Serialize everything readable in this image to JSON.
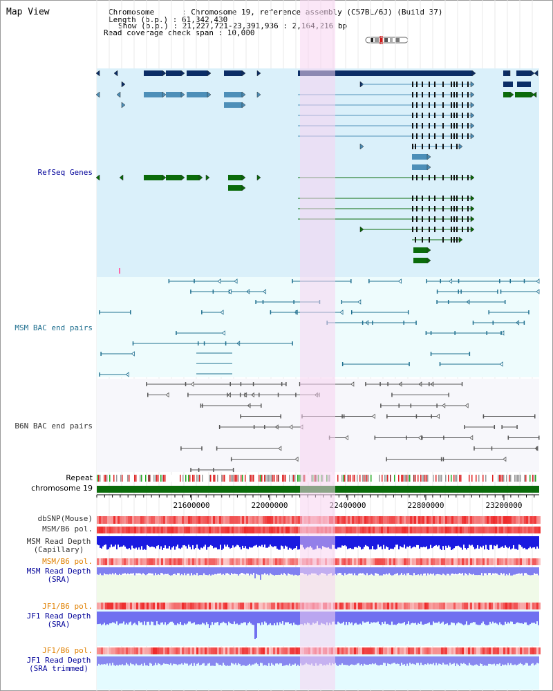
{
  "header": {
    "view_title": "Map View",
    "chromosome": "Chromosome      : Chromosome 19, reference assembly (C57BL/6J) (Build 37)",
    "length": "Length (b.p.) : 61,342,430",
    "show": "Show (b.p.) : 21,227,721-23,391,936 : 2,164,216 bp",
    "coverage": "Read coverage check span : 10,000"
  },
  "tracks": {
    "refseq": {
      "label": "RefSeq Genes",
      "color": "#000099"
    },
    "msm_bac": {
      "label": "MSM BAC end pairs",
      "color": "#1f6f8f"
    },
    "b6n_bac": {
      "label": "B6N BAC end pairs",
      "color": "#333333"
    },
    "repeat": {
      "label": "Repeat"
    },
    "chromosome": {
      "label": "chromosome 19"
    },
    "dbsnp": {
      "label": "dbSNP(Mouse)"
    },
    "msm_b6_pol_1": {
      "label": "MSM/B6 pol."
    },
    "msm_depth_cap": {
      "label": "MSM Read Depth\n(Capillary)"
    },
    "msm_b6_pol_2": {
      "label": "MSM/B6 pol.",
      "color": "#e08000"
    },
    "msm_depth_sra": {
      "label": "MSM Read Depth\n(SRA)",
      "color": "#000099"
    },
    "jf1_b6_pol_1": {
      "label": "JF1/B6 pol.",
      "color": "#e08000"
    },
    "jf1_depth_sra": {
      "label": "JF1 Read Depth\n(SRA)",
      "color": "#000099"
    },
    "jf1_b6_pol_2": {
      "label": "JF1/B6 pol.",
      "color": "#e08000"
    },
    "jf1_depth_trim": {
      "label": "JF1 Read Depth\n(SRA trimmed)",
      "color": "#000099"
    }
  },
  "axis": {
    "ticks": [
      "21600000",
      "22000000",
      "22400000",
      "22800000",
      "23200000"
    ]
  },
  "colors": {
    "refseq_bg": "#daf0fa",
    "bac_bg": "#eefcfd",
    "highlight": "#f8d4f0",
    "gene_dark": "#0b2d66",
    "gene_mid": "#4d8fb8",
    "gene_green": "#0a6b0a",
    "chromosome_bar": "#0a6b0a"
  }
}
